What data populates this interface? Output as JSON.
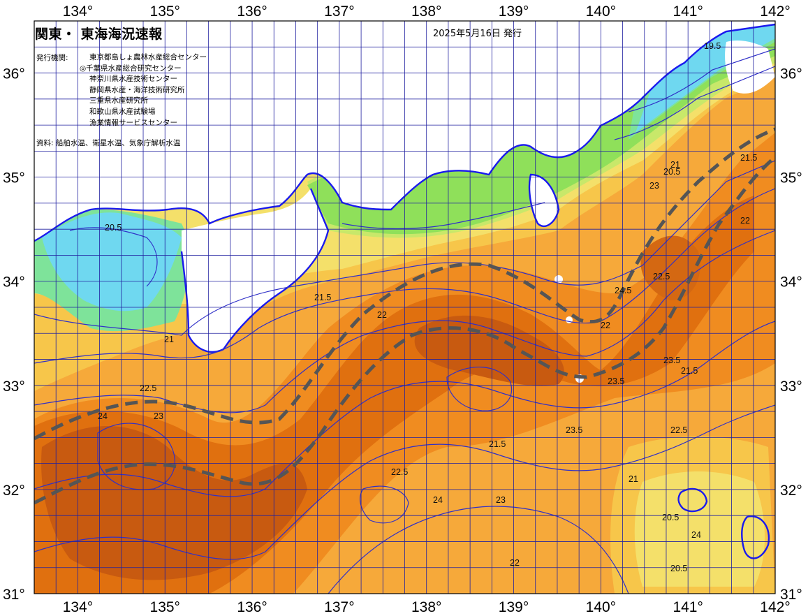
{
  "title": "関東・ 東海海況速報",
  "issued": "2025年5月16日 発行",
  "agencies": {
    "label": "発行機関:",
    "items": [
      "東京都島しょ農林水産総合センター",
      "◎千葉県水産総合研究センター",
      "神奈川県水産技術センター",
      "静岡県水産・海洋技術研究所",
      "三重県水産研究所",
      "和歌山県水産試験場",
      "漁業情報サービスセンター"
    ]
  },
  "source": "資料: 船舶水温、衛星水温、気象庁解析水温",
  "axes": {
    "lon_labels": [
      "134°",
      "135°",
      "136°",
      "137°",
      "138°",
      "139°",
      "140°",
      "141°",
      "142°"
    ],
    "lat_labels_left": [
      "36°",
      "35°",
      "34°",
      "33°",
      "32°",
      "31°"
    ],
    "lat_labels_right": [
      "36°",
      "35°",
      "34°",
      "33°",
      "32°",
      "31°"
    ],
    "lon_range": [
      133.5,
      142.0
    ],
    "lat_range": [
      31.0,
      36.5
    ]
  },
  "colors": {
    "land": "#ffffff",
    "temp_scale": [
      "#6fd8f0",
      "#7ee39a",
      "#8fe05a",
      "#c8e86a",
      "#f4e06a",
      "#f7c64a",
      "#f6a93a",
      "#f08c20",
      "#e0700f",
      "#c85a10",
      "#b24a12"
    ],
    "isotherm": "#2222cc",
    "coast": "#1a1aee",
    "kuroshio": "#555555"
  },
  "isotherm_labels": [
    {
      "t": "19.5"
    },
    {
      "t": "20.5"
    },
    {
      "t": "21"
    },
    {
      "t": "21.5"
    },
    {
      "t": "22"
    },
    {
      "t": "22.5"
    },
    {
      "t": "23"
    },
    {
      "t": "23.5"
    },
    {
      "t": "24"
    },
    {
      "t": "24.5"
    },
    {
      "t": "21"
    },
    {
      "t": "21.5"
    },
    {
      "t": "22"
    },
    {
      "t": "22.5"
    },
    {
      "t": "23"
    },
    {
      "t": "23.5"
    },
    {
      "t": "24"
    },
    {
      "t": "20.5"
    },
    {
      "t": "21.5"
    },
    {
      "t": "22"
    },
    {
      "t": "22.5"
    },
    {
      "t": "23"
    },
    {
      "t": "20.5"
    },
    {
      "t": "21.5"
    },
    {
      "t": "22"
    },
    {
      "t": "23.5"
    },
    {
      "t": "24"
    },
    {
      "t": "22.5"
    },
    {
      "t": "21"
    },
    {
      "t": "20.5"
    }
  ]
}
